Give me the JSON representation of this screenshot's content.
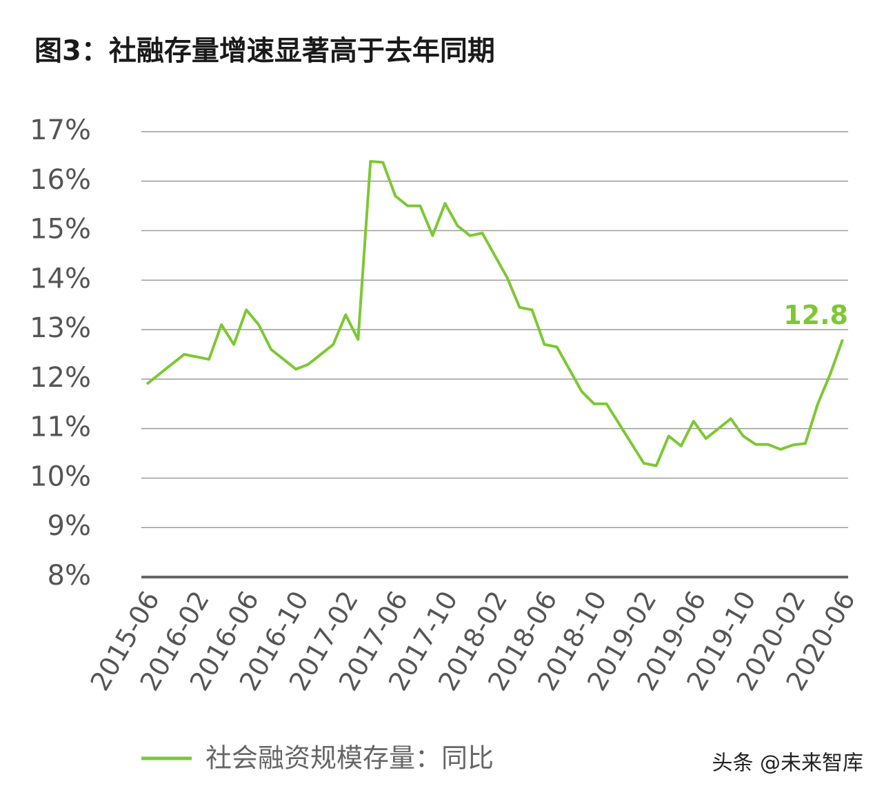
{
  "chart_data": {
    "type": "line",
    "title": "图3：社融存量增速显著高于去年同期",
    "categories": [
      "2015-06",
      null,
      null,
      null,
      "2016-02",
      null,
      null,
      null,
      "2016-06",
      null,
      null,
      null,
      "2016-10",
      null,
      null,
      null,
      "2017-02",
      null,
      null,
      null,
      "2017-06",
      null,
      null,
      null,
      "2017-10",
      null,
      null,
      null,
      "2018-02",
      null,
      null,
      null,
      "2018-06",
      null,
      null,
      null,
      "2018-10",
      null,
      null,
      null,
      "2019-02",
      null,
      null,
      null,
      "2019-06",
      null,
      null,
      null,
      "2019-10",
      null,
      null,
      null,
      "2020-02",
      null,
      null,
      null,
      "2020-06"
    ],
    "series": [
      {
        "name": "社会融资规模存量：同比",
        "color": "#7cc832",
        "values": [
          11.9,
          12.1,
          12.3,
          12.5,
          12.45,
          12.4,
          13.1,
          12.7,
          13.4,
          13.1,
          12.6,
          12.4,
          12.2,
          12.3,
          12.5,
          12.7,
          13.3,
          12.8,
          16.4,
          16.38,
          15.7,
          15.5,
          15.5,
          14.9,
          15.55,
          15.1,
          14.9,
          14.95,
          14.5,
          14.05,
          13.45,
          13.4,
          12.7,
          12.65,
          12.2,
          11.75,
          11.5,
          11.5,
          11.1,
          10.7,
          10.3,
          10.25,
          10.85,
          10.65,
          11.15,
          10.8,
          11.0,
          11.2,
          10.85,
          10.68,
          10.68,
          10.58,
          10.67,
          10.7,
          11.5,
          12.1,
          12.8
        ]
      }
    ],
    "annotation": "12.8",
    "ylim": [
      8,
      17
    ],
    "yticks": [
      {
        "value": 8,
        "label": "8%"
      },
      {
        "value": 9,
        "label": "9%"
      },
      {
        "value": 10,
        "label": "10%"
      },
      {
        "value": 11,
        "label": "11%"
      },
      {
        "value": 12,
        "label": "12%"
      },
      {
        "value": 13,
        "label": "13%"
      },
      {
        "value": 14,
        "label": "14%"
      },
      {
        "value": 15,
        "label": "15%"
      },
      {
        "value": 16,
        "label": "16%"
      },
      {
        "value": 17,
        "label": "17%"
      }
    ],
    "grid": true,
    "watermark": "头条 @未来智库"
  }
}
